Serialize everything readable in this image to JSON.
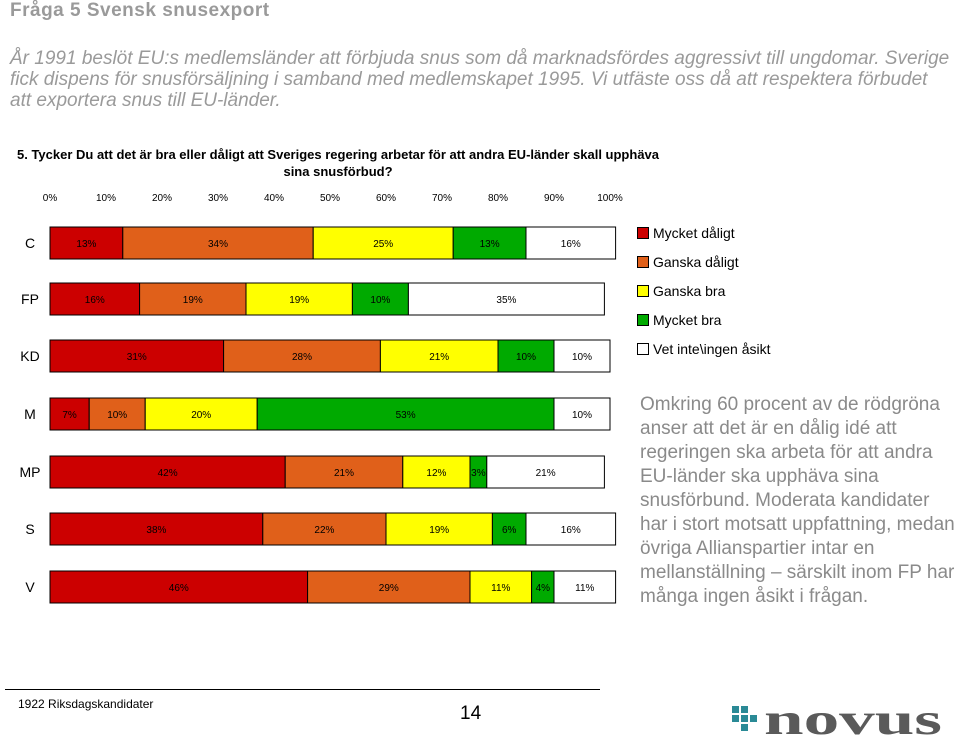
{
  "header": {
    "title": "Fråga 5 Svensk snusexport",
    "intro": "År 1991 beslöt EU:s medlemsländer att förbjuda snus som då marknadsfördes aggressivt till ungdomar. Sverige fick dispens för snusförsäljning i samband med medlemskapet 1995. Vi utfäste oss då att respektera förbudet att exportera snus till EU-länder."
  },
  "question": "5. Tycker Du att det är bra eller dåligt att Sveriges regering arbetar för att andra EU-länder skall upphäva sina snusförbud?",
  "commentary": "Omkring 60 procent av de rödgröna anser att det är en dålig idé att regeringen ska arbeta för att andra EU-länder ska upphäva sina snusförbund. Moderata kandidater har i stort motsatt uppfattning, medan övriga Allianspartier intar en mellanställning – särskilt inom FP har många ingen åsikt i frågan.",
  "footer": {
    "source": "1922 Riksdagskandidater",
    "page_number": "14",
    "logo_text": "novus"
  },
  "colors": {
    "mycket_daligt": "#cc0000",
    "ganska_daligt": "#e0601a",
    "ganska_bra": "#ffff00",
    "mycket_bra": "#00aa00",
    "vet_inte": "#ffffff",
    "logo_teal": "#2a8a96",
    "logo_gray": "#5a5a5a"
  },
  "chart_data": {
    "type": "bar",
    "orientation": "horizontal",
    "stacked": true,
    "x_ticks": [
      "0%",
      "10%",
      "20%",
      "30%",
      "40%",
      "50%",
      "60%",
      "70%",
      "80%",
      "90%",
      "100%"
    ],
    "xlim": [
      0,
      100
    ],
    "categories": [
      "C",
      "FP",
      "KD",
      "M",
      "MP",
      "S",
      "V"
    ],
    "series": [
      {
        "name": "Mycket dåligt",
        "color": "#cc0000",
        "values": [
          13,
          16,
          31,
          7,
          42,
          38,
          46
        ]
      },
      {
        "name": "Ganska dåligt",
        "color": "#e0601a",
        "values": [
          34,
          19,
          28,
          10,
          21,
          22,
          29
        ]
      },
      {
        "name": "Ganska bra",
        "color": "#ffff00",
        "values": [
          25,
          19,
          21,
          20,
          12,
          19,
          11
        ]
      },
      {
        "name": "Mycket bra",
        "color": "#00aa00",
        "values": [
          13,
          10,
          10,
          53,
          3,
          6,
          4
        ]
      },
      {
        "name": "Vet inte\\ingen åsikt",
        "color": "#ffffff",
        "values": [
          16,
          35,
          10,
          10,
          21,
          16,
          11
        ]
      }
    ],
    "data_labels": [
      [
        "13%",
        "34%",
        "25%",
        "13%",
        "16%"
      ],
      [
        "16%",
        "19%",
        "19%",
        "10%",
        "35%"
      ],
      [
        "31%",
        "28%",
        "21%",
        "10%",
        "10%"
      ],
      [
        "7%",
        "10%",
        "20%",
        "53%",
        "10%"
      ],
      [
        "42%",
        "21%",
        "12%",
        "3%",
        "21%"
      ],
      [
        "38%",
        "22%",
        "19%",
        "6%",
        "16%"
      ],
      [
        "46%",
        "29%",
        "11%",
        "4%",
        "11%"
      ]
    ],
    "grid": false,
    "legend_position": "right"
  }
}
